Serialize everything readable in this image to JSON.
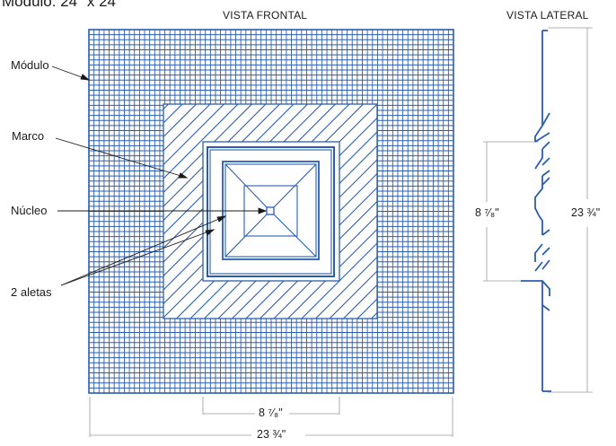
{
  "title": "Módulo: 24\" x 24\"",
  "views": {
    "front": "VISTA FRONTAL",
    "side": "VISTA LATERAL"
  },
  "labels": {
    "modulo": "Módulo",
    "marco": "Marco",
    "nucleo": "Núcleo",
    "aletas": "2 aletas"
  },
  "dimensions": {
    "front_inner": "8 ⁷⁄₈\"",
    "front_outer": "23 ¾\"",
    "side_inner": "8 ⁷⁄₈\"",
    "side_outer": "23 ¾\""
  },
  "colors": {
    "line": "#2a5db0",
    "dim": "#9a9a9a",
    "text": "#1b1b1b",
    "background": "#ffffff"
  }
}
